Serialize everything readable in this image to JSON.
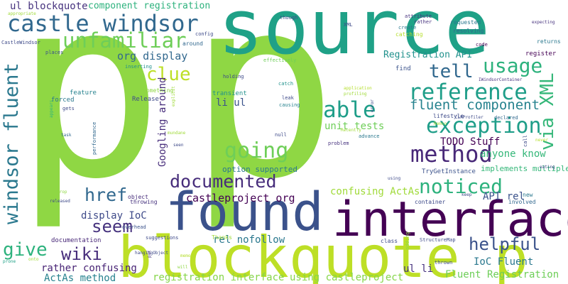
{
  "words": [
    {
      "text": "p",
      "color": "#8fd744"
    },
    {
      "text": "p",
      "color": "#8fd744"
    },
    {
      "text": "source",
      "color": "#1fa187"
    },
    {
      "text": "found",
      "color": "#3b528b"
    },
    {
      "text": "interface",
      "color": "#440154"
    },
    {
      "text": "blockquote p",
      "color": "#bddf26"
    },
    {
      "text": "castle windsor",
      "color": "#31688e"
    },
    {
      "text": "windsor fluent",
      "color": "#2a788e"
    },
    {
      "text": "unfamiliar",
      "color": "#6ece58"
    },
    {
      "text": "reference",
      "color": "#1f9e89"
    },
    {
      "text": "exception",
      "color": "#1f9e89"
    },
    {
      "text": "method",
      "color": "#482878"
    },
    {
      "text": "going",
      "color": "#6ece58"
    },
    {
      "text": "documented",
      "color": "#472d7b"
    },
    {
      "text": "usage",
      "color": "#2db27d"
    },
    {
      "text": "able",
      "color": "#1f9e89"
    },
    {
      "text": "tell",
      "color": "#31688e"
    },
    {
      "text": "via XML",
      "color": "#35b779"
    },
    {
      "text": "href",
      "color": "#31688e"
    },
    {
      "text": "seem",
      "color": "#46327e"
    },
    {
      "text": "noticed",
      "color": "#2db27d"
    },
    {
      "text": "helpful",
      "color": "#3b528b"
    },
    {
      "text": "wiki",
      "color": "#472d7b"
    },
    {
      "text": "give",
      "color": "#2db27d"
    },
    {
      "text": "clue",
      "color": "#bddf26"
    },
    {
      "text": "ul blockquote",
      "color": "#46327e"
    },
    {
      "text": "component registration",
      "color": "#2db27d"
    },
    {
      "text": "org display",
      "color": "#31688e"
    },
    {
      "text": "fluent component",
      "color": "#26828e"
    },
    {
      "text": "Registration API",
      "color": "#21918c"
    },
    {
      "text": "unit tests",
      "color": "#6ece58"
    },
    {
      "text": "TODO Stuff",
      "color": "#440154"
    },
    {
      "text": "anyone know",
      "color": "#35b779"
    },
    {
      "text": "li ul",
      "color": "#3b528b"
    },
    {
      "text": "castleproject org",
      "color": "#440154"
    },
    {
      "text": "option supported",
      "color": "#2a788e"
    },
    {
      "text": "confusing ActAs",
      "color": "#a0da39"
    },
    {
      "text": "display IoC",
      "color": "#3e4a89"
    },
    {
      "text": "rather confusing",
      "color": "#482475"
    },
    {
      "text": "rel nofollow",
      "color": "#2a788e"
    },
    {
      "text": "ActAs method",
      "color": "#26828e"
    },
    {
      "text": "registration interface",
      "color": "#86d549"
    },
    {
      "text": "using castleproject",
      "color": "#86d549"
    },
    {
      "text": "ul li",
      "color": "#46327e"
    },
    {
      "text": "IoC Fluent",
      "color": "#2a788e"
    },
    {
      "text": "Fluent Registration",
      "color": "#6ece58"
    },
    {
      "text": "API rel",
      "color": "#3b528b"
    },
    {
      "text": "Googling around",
      "color": "#472d7b"
    },
    {
      "text": "implements multiple",
      "color": "#35b779"
    },
    {
      "text": "TryGetInstance",
      "color": "#3b528b"
    },
    {
      "text": "documentation",
      "color": "#482878"
    },
    {
      "text": "feature",
      "color": "#26828e"
    },
    {
      "text": "forced",
      "color": "#2a788e"
    },
    {
      "text": "Release",
      "color": "#3e4a89"
    },
    {
      "text": "transient",
      "color": "#21918c"
    },
    {
      "text": "something",
      "color": "#8fd744"
    },
    {
      "text": "catching",
      "color": "#b5de2b"
    },
    {
      "text": "resolving",
      "color": "#31688e"
    },
    {
      "text": "requested",
      "color": "#2a788e"
    },
    {
      "text": "register",
      "color": "#440154"
    },
    {
      "text": "returns",
      "color": "#2a788e"
    },
    {
      "text": "lifestyle",
      "color": "#3e4a89"
    },
    {
      "text": "declared",
      "color": "#31688e"
    },
    {
      "text": "container",
      "color": "#3e4a89"
    },
    {
      "text": "involved",
      "color": "#31688e"
    },
    {
      "text": "new",
      "color": "#2a788e"
    },
    {
      "text": "thrown",
      "color": "#3e4a89"
    },
    {
      "text": "adding",
      "color": "#8fd744"
    },
    {
      "text": "class",
      "color": "#3e4a89"
    },
    {
      "text": "Thanks",
      "color": "#a0da39"
    },
    {
      "text": "object",
      "color": "#472d7b"
    },
    {
      "text": "throwing",
      "color": "#46327e"
    },
    {
      "text": "overhead",
      "color": "#3b528b"
    },
    {
      "text": "suggestions",
      "color": "#3e4a89"
    },
    {
      "text": "find",
      "color": "#3b528b"
    },
    {
      "text": "code",
      "color": "#440154"
    },
    {
      "text": "catch",
      "color": "#21918c"
    },
    {
      "text": "holding",
      "color": "#3e4a89"
    },
    {
      "text": "null",
      "color": "#3e4a89"
    },
    {
      "text": "problem",
      "color": "#46327e"
    },
    {
      "text": "advance",
      "color": "#2a788e"
    },
    {
      "text": "config",
      "color": "#3e4a89"
    },
    {
      "text": "around",
      "color": "#31688e"
    },
    {
      "text": "places",
      "color": "#3b528b"
    },
    {
      "text": "effectively",
      "color": "#6ece58"
    },
    {
      "text": "inserting",
      "color": "#21918c"
    },
    {
      "text": "though",
      "color": "#3e4a89"
    },
    {
      "text": "XML",
      "color": "#3e4a89"
    },
    {
      "text": "attribute",
      "color": "#46327e"
    },
    {
      "text": "rather",
      "color": "#46327e"
    },
    {
      "text": "create",
      "color": "#2a788e"
    },
    {
      "text": "expecting",
      "color": "#46327e"
    },
    {
      "text": "CastleWindsor",
      "color": "#3e4a89"
    },
    {
      "text": "appropriate",
      "color": "#a0da39"
    },
    {
      "text": "gets",
      "color": "#3e4a89"
    },
    {
      "text": "performance",
      "color": "#31688e"
    },
    {
      "text": "leak",
      "color": "#3e4a89"
    },
    {
      "text": "causing",
      "color": "#26828e"
    },
    {
      "text": "application",
      "color": "#b5de2b"
    },
    {
      "text": "profiling",
      "color": "#a0da39"
    },
    {
      "text": "IWindsorContainer",
      "color": "#46327e"
    },
    {
      "text": "CLRProfiler",
      "color": "#3e4a89"
    },
    {
      "text": "Remco",
      "color": "#a0da39"
    },
    {
      "text": "Recently",
      "color": "#a0da39"
    },
    {
      "text": "StructureMap",
      "color": "#3e4a89"
    },
    {
      "text": "using",
      "color": "#3e4a89"
    },
    {
      "text": "keep",
      "color": "#3e4a89"
    },
    {
      "text": "eating",
      "color": "#3e4a89"
    },
    {
      "text": "never",
      "color": "#b5de2b"
    },
    {
      "text": "hangingObject",
      "color": "#3e4a89"
    },
    {
      "text": "released",
      "color": "#3e4a89"
    },
    {
      "text": "drop",
      "color": "#8fd744"
    },
    {
      "text": "appears",
      "color": "#35b779"
    },
    {
      "text": "task",
      "color": "#31688e"
    },
    {
      "text": "seen",
      "color": "#3e4a89"
    },
    {
      "text": "mundane",
      "color": "#a0da39"
    },
    {
      "text": "explicit",
      "color": "#a0da39"
    },
    {
      "text": "put",
      "color": "#46327e"
    },
    {
      "text": "will",
      "color": "#8fd744"
    },
    {
      "text": "memory",
      "color": "#b5de2b"
    },
    {
      "text": "prone",
      "color": "#1fa187"
    },
    {
      "text": "onto",
      "color": "#a0da39"
    },
    {
      "text": "error",
      "color": "#3e4a89"
    },
    {
      "text": "call",
      "color": "#3e4a89"
    }
  ]
}
